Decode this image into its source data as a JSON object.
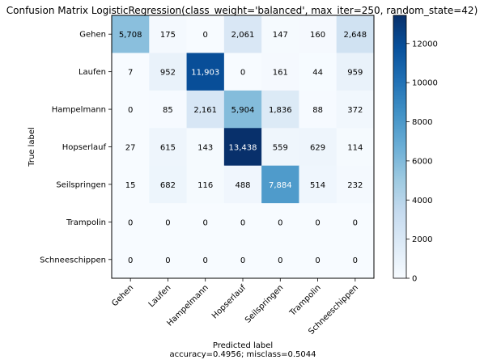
{
  "chart_data": {
    "type": "heatmap",
    "title": "Confusion Matrix LogisticRegression(class_weight='balanced', max_iter=250, random_state=42)",
    "xlabel": "Predicted label",
    "xlabel2": "accuracy=0.4956; misclass=0.5044",
    "ylabel": "True label",
    "row_labels": [
      "Gehen",
      "Laufen",
      "Hampelmann",
      "Hopserlauf",
      "Seilspringen",
      "Trampolin",
      "Schneeschippen"
    ],
    "col_labels": [
      "Gehen",
      "Laufen",
      "Hampelmann",
      "Hopserlauf",
      "Seilspringen",
      "Trampolin",
      "Schneeschippen"
    ],
    "values": [
      [
        5708,
        175,
        0,
        2061,
        147,
        160,
        2648
      ],
      [
        7,
        952,
        11903,
        0,
        161,
        44,
        959
      ],
      [
        0,
        85,
        2161,
        5904,
        1836,
        88,
        372
      ],
      [
        27,
        615,
        143,
        13438,
        559,
        629,
        114
      ],
      [
        15,
        682,
        116,
        488,
        7884,
        514,
        232
      ],
      [
        0,
        0,
        0,
        0,
        0,
        0,
        0
      ],
      [
        0,
        0,
        0,
        0,
        0,
        0,
        0
      ]
    ],
    "value_labels": [
      [
        "5,708",
        "175",
        "0",
        "2,061",
        "147",
        "160",
        "2,648"
      ],
      [
        "7",
        "952",
        "11,903",
        "0",
        "161",
        "44",
        "959"
      ],
      [
        "0",
        "85",
        "2,161",
        "5,904",
        "1,836",
        "88",
        "372"
      ],
      [
        "27",
        "615",
        "143",
        "13,438",
        "559",
        "629",
        "114"
      ],
      [
        "15",
        "682",
        "116",
        "488",
        "7,884",
        "514",
        "232"
      ],
      [
        "0",
        "0",
        "0",
        "0",
        "0",
        "0",
        "0"
      ],
      [
        "0",
        "0",
        "0",
        "0",
        "0",
        "0",
        "0"
      ]
    ],
    "colormap": "Blues",
    "color_range": [
      0,
      13438
    ],
    "colorbar_ticks": [
      0,
      2000,
      4000,
      6000,
      8000,
      10000,
      12000
    ],
    "colorbar_tick_labels": [
      "0",
      "2000",
      "4000",
      "6000",
      "8000",
      "10000",
      "12000"
    ],
    "grid": false
  }
}
